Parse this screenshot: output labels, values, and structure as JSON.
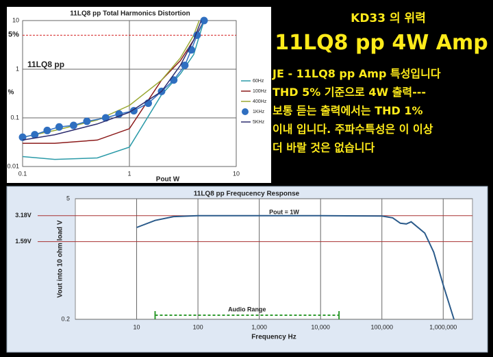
{
  "chart_data": [
    {
      "type": "line",
      "title": "11LQ8 pp   Total Harmonics Distortion",
      "xlabel": "Pout  W",
      "ylabel": "%",
      "xscale": "log",
      "yscale": "log",
      "xlim": [
        0.1,
        10
      ],
      "ylim": [
        0.01,
        10
      ],
      "xticks": [
        0.1,
        1,
        10
      ],
      "yticks": [
        0.01,
        0.1,
        1,
        10
      ],
      "annotations": [
        "11LQ8 pp"
      ],
      "reference_lines": [
        {
          "value": 5,
          "label": "5%",
          "color": "#d42020"
        }
      ],
      "series": [
        {
          "name": "60Hz",
          "color": "#2a9aa8",
          "x": [
            0.1,
            0.2,
            0.5,
            1,
            2,
            3,
            4,
            5
          ],
          "values": [
            0.016,
            0.014,
            0.015,
            0.025,
            0.3,
            0.8,
            2,
            10
          ]
        },
        {
          "name": "100Hz",
          "color": "#8b1a1a",
          "x": [
            0.1,
            0.2,
            0.5,
            1,
            2,
            3,
            4,
            5
          ],
          "values": [
            0.03,
            0.03,
            0.035,
            0.06,
            0.6,
            1.5,
            4,
            10
          ]
        },
        {
          "name": "400Hz",
          "color": "#9aa832",
          "x": [
            0.1,
            0.2,
            0.5,
            1,
            2,
            3,
            4,
            4.5
          ],
          "values": [
            0.04,
            0.055,
            0.09,
            0.18,
            0.6,
            1.7,
            5,
            10
          ]
        },
        {
          "name": "1KHz",
          "color": "#2f6fc0",
          "marker": "circle",
          "x": [
            0.1,
            0.13,
            0.17,
            0.22,
            0.3,
            0.4,
            0.6,
            0.8,
            1.1,
            1.5,
            2,
            2.6,
            3.3,
            3.8,
            4.3,
            5
          ],
          "values": [
            0.04,
            0.045,
            0.055,
            0.065,
            0.07,
            0.085,
            0.1,
            0.12,
            0.14,
            0.2,
            0.35,
            0.6,
            1.2,
            2.5,
            5,
            10
          ]
        },
        {
          "name": "5KHz",
          "color": "#2c2c6e",
          "x": [
            0.1,
            0.2,
            0.5,
            1,
            2,
            3,
            4,
            4.7
          ],
          "values": [
            0.035,
            0.045,
            0.075,
            0.13,
            0.35,
            1.2,
            4,
            10
          ]
        }
      ]
    },
    {
      "type": "line",
      "title": "11LQ8 pp    Frequcency Response",
      "xlabel": "Frequency  Hz",
      "ylabel": "Vout into 10 ohm load  V",
      "xscale": "log",
      "yscale": "log",
      "xlim": [
        1,
        3000000
      ],
      "ylim": [
        0.2,
        5
      ],
      "xticks": [
        10,
        100,
        {
          "value": 1000,
          "label": "1,000"
        },
        {
          "value": 10000,
          "label": "10,000"
        },
        {
          "value": 100000,
          "label": "100,000"
        },
        {
          "value": 1000000,
          "label": "1,000,000"
        }
      ],
      "yticks": [
        0.2,
        5
      ],
      "annotations": [
        "Pout = 1W"
      ],
      "reference_lines": [
        {
          "value": 3.18,
          "label": "3.18V",
          "color": "#a83030"
        },
        {
          "value": 1.59,
          "label": "1.59V",
          "color": "#a83030"
        }
      ],
      "range_annotation": {
        "label": "Audio Range",
        "x": [
          20,
          20000
        ],
        "color": "#2e9a2e"
      },
      "series": [
        {
          "color": "#2a5a8a",
          "x": [
            10,
            20,
            40,
            100,
            1000,
            10000,
            100000,
            150000,
            200000,
            250000,
            300000,
            500000,
            700000,
            1000000,
            1500000
          ],
          "values": [
            2.32,
            2.8,
            3.1,
            3.18,
            3.18,
            3.18,
            3.15,
            3.0,
            2.6,
            2.55,
            2.7,
            2.0,
            1.2,
            0.5,
            0.2
          ]
        }
      ]
    }
  ],
  "text_panel": {
    "heading": "KD33 의 위력",
    "title": "11LQ8 pp  4W Amp",
    "lines": [
      "JE - 11LQ8 pp Amp 특성입니다",
      "THD 5% 기준으로 4W 출력---",
      "보통  듣는 출력에서는 THD 1%",
      "이내 입니다.  주파수특성은 이 이상",
      "더 바랄 것은   없습니다"
    ]
  }
}
